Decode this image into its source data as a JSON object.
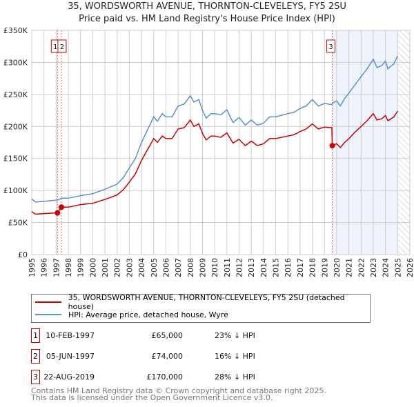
{
  "title": "35, WORDSWORTH AVENUE, THORNTON-CLEVELEYS, FY5 2SU",
  "subtitle": "Price paid vs. HM Land Registry's House Price Index (HPI)",
  "chart_data": {
    "type": "line",
    "xlim": [
      1995,
      2026
    ],
    "ylim": [
      0,
      350000
    ],
    "yticks": [
      0,
      50000,
      100000,
      150000,
      200000,
      250000,
      300000,
      350000
    ],
    "ytick_labels": [
      "£0",
      "£50K",
      "£100K",
      "£150K",
      "£200K",
      "£250K",
      "£300K",
      "£350K"
    ],
    "xticks": [
      1995,
      1996,
      1997,
      1998,
      1999,
      2000,
      2001,
      2002,
      2003,
      2004,
      2005,
      2006,
      2007,
      2008,
      2009,
      2010,
      2011,
      2012,
      2013,
      2014,
      2015,
      2016,
      2017,
      2018,
      2019,
      2020,
      2021,
      2022,
      2023,
      2024,
      2025,
      2026
    ],
    "grid": true,
    "shaded_region": [
      2019.64,
      2025.0
    ],
    "hatched_region": [
      2025.0,
      2026
    ],
    "x": [
      1995.0,
      1995.3,
      1996,
      1997,
      1997.11,
      1997.43,
      1998,
      1999,
      2000,
      2001,
      2002,
      2002.5,
      2003,
      2003.5,
      2004,
      2004.5,
      2005,
      2005.3,
      2005.7,
      2006,
      2006.5,
      2007,
      2007.5,
      2008,
      2008.3,
      2008.7,
      2009,
      2009.3,
      2009.7,
      2010,
      2010.5,
      2011,
      2011.5,
      2012,
      2012.5,
      2013,
      2013.5,
      2014,
      2014.5,
      2015,
      2016,
      2016.5,
      2017,
      2017.5,
      2018,
      2018.5,
      2019,
      2019.6,
      2019.64,
      2020,
      2020.3,
      2020.7,
      2021,
      2021.5,
      2022,
      2022.5,
      2023,
      2023.3,
      2023.7,
      2024,
      2024.2,
      2024.7,
      2025
    ],
    "series": [
      {
        "name": "35, WORDSWORTH AVENUE, THORNTON-CLEVELEYS, FY5 2SU (detached house)",
        "color": "#cc0000",
        "values": [
          67,
          63,
          64,
          65,
          65,
          74,
          74,
          78,
          80,
          86,
          93,
          101,
          113,
          126,
          147,
          164,
          181,
          175,
          185,
          181,
          181,
          196,
          198,
          210,
          200,
          204,
          189,
          179,
          185,
          185,
          183,
          190,
          174,
          180,
          170,
          177,
          170,
          173,
          181,
          181,
          185,
          187,
          192,
          196,
          204,
          196,
          199,
          198,
          170,
          173,
          167,
          176,
          181,
          191,
          200,
          209,
          220,
          210,
          212,
          217,
          209,
          215,
          224
        ]
      },
      {
        "name": "HPI: Average price, detached house, Wyre",
        "color": "#5b8fd4",
        "values": [
          87,
          82,
          83,
          85,
          85,
          88,
          88,
          92,
          95,
          102,
          110,
          120,
          135,
          150,
          175,
          195,
          215,
          208,
          220,
          215,
          215,
          232,
          235,
          248,
          238,
          242,
          225,
          213,
          220,
          220,
          218,
          226,
          206,
          214,
          202,
          210,
          202,
          205,
          215,
          215,
          220,
          222,
          228,
          232,
          242,
          232,
          236,
          234,
          236,
          240,
          232,
          245,
          252,
          265,
          278,
          290,
          305,
          292,
          295,
          302,
          290,
          298,
          310
        ]
      }
    ],
    "value_unit": "thousands GBP",
    "sales": [
      {
        "label": "1",
        "x": 1997.11,
        "y": 65000
      },
      {
        "label": "2",
        "x": 1997.43,
        "y": 74000
      },
      {
        "label": "3",
        "x": 2019.64,
        "y": 170000
      }
    ]
  },
  "legend": {
    "red": "35, WORDSWORTH AVENUE, THORNTON-CLEVELEYS, FY5 2SU (detached house)",
    "blue": "HPI: Average price, detached house, Wyre"
  },
  "transactions": [
    {
      "num": "1",
      "date": "10-FEB-1997",
      "price": "£65,000",
      "diff": "23% ↓ HPI"
    },
    {
      "num": "2",
      "date": "05-JUN-1997",
      "price": "£74,000",
      "diff": "16% ↓ HPI"
    },
    {
      "num": "3",
      "date": "22-AUG-2019",
      "price": "£170,000",
      "diff": "28% ↓ HPI"
    }
  ],
  "footer": {
    "line1": "Contains HM Land Registry data © Crown copyright and database right 2025.",
    "line2": "This data is licensed under the Open Government Licence v3.0."
  }
}
